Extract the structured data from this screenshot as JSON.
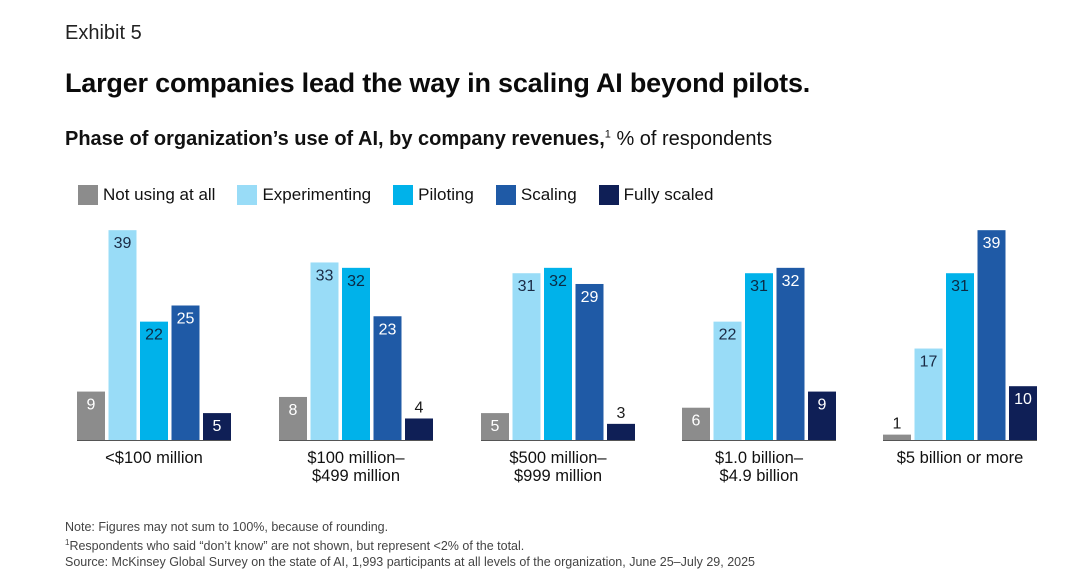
{
  "header": {
    "exhibit": "Exhibit 5",
    "title": "Larger companies lead the way in scaling AI beyond pilots.",
    "subtitle_bold": "Phase of organization’s use of AI, by company revenues,",
    "subtitle_sup": "1",
    "subtitle_rest": " % of respondents"
  },
  "colors": {
    "Not using at all": "#8c8c8c",
    "Experimenting": "#99dcf7",
    "Piloting": "#00b2ea",
    "Scaling": "#1f5aa6",
    "Fully scaled": "#0f1f56"
  },
  "chart_data": {
    "type": "bar",
    "categories": [
      [
        "<$100 million"
      ],
      [
        "$100 million–",
        "$499 million"
      ],
      [
        "$500 million–",
        "$999 million"
      ],
      [
        "$1.0 billion–",
        "$4.9 billion"
      ],
      [
        "$5 billion or more"
      ]
    ],
    "series": [
      {
        "name": "Not using at all",
        "values": [
          9,
          8,
          5,
          6,
          1
        ]
      },
      {
        "name": "Experimenting",
        "values": [
          39,
          33,
          31,
          22,
          17
        ]
      },
      {
        "name": "Piloting",
        "values": [
          22,
          32,
          32,
          31,
          31
        ]
      },
      {
        "name": "Scaling",
        "values": [
          25,
          23,
          29,
          32,
          39
        ]
      },
      {
        "name": "Fully scaled",
        "values": [
          5,
          4,
          3,
          9,
          10
        ]
      }
    ],
    "ylim": [
      0,
      40
    ],
    "grid": false,
    "legend": "top-left"
  },
  "notes": {
    "line1": "Note: Figures may not sum to 100%, because of rounding.",
    "line2_sup": "1",
    "line2": "Respondents who said “don’t know” are not shown, but represent <2% of the total.",
    "line3": "Source: McKinsey Global Survey on the state of AI, 1,993 participants at all levels of the organization, June 25–July 29, 2025"
  }
}
